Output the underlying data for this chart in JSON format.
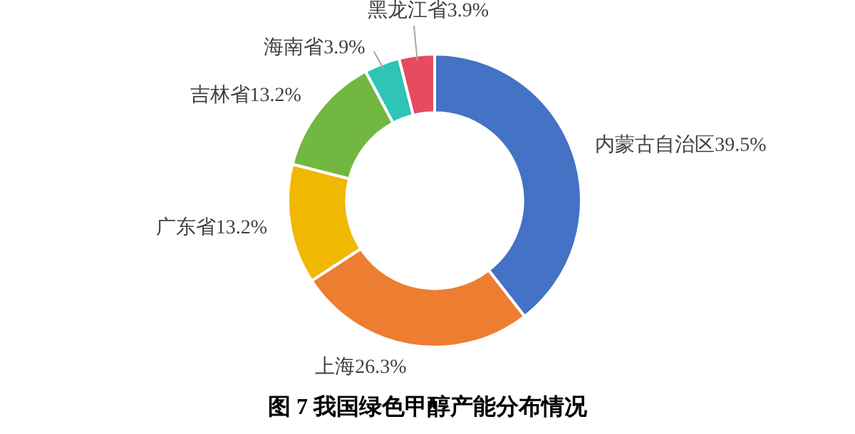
{
  "chart_data": {
    "type": "donut",
    "title": "图 7 我国绿色甲醇产能分布情况",
    "categories": [
      "内蒙古自治区",
      "上海",
      "广东省",
      "吉林省",
      "海南省",
      "黑龙江省"
    ],
    "values": [
      39.5,
      26.3,
      13.2,
      13.2,
      3.9,
      3.9
    ],
    "value_labels": [
      "39.5%",
      "26.3%",
      "13.2%",
      "13.2%",
      "3.9%",
      "3.9%"
    ],
    "colors": [
      "#4472c4",
      "#ed7d31",
      "#f0b800",
      "#72b840",
      "#2ec4b6",
      "#e84a5f"
    ],
    "legend": false
  }
}
